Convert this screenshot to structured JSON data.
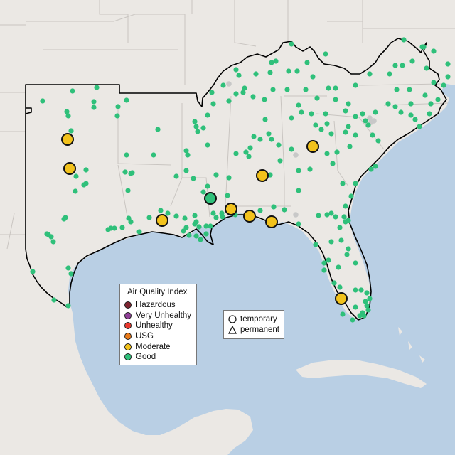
{
  "map": {
    "colors": {
      "land": "#ebe8e4",
      "water": "#b9cfe4",
      "state_border": "#c9c5c1",
      "region_outline": "#000000",
      "site_good": "#2fc07a",
      "site_moderate": "#f2c21c",
      "site_inactive": "#c8c8c8"
    }
  },
  "legend": {
    "title": "Air Quality Index",
    "items": [
      {
        "label": "Hazardous",
        "color": "#7e2430"
      },
      {
        "label": "Very Unhealthy",
        "color": "#8f3f97"
      },
      {
        "label": "Unhealthy",
        "color": "#e8382d"
      },
      {
        "label": "USG",
        "color": "#e97a1a"
      },
      {
        "label": "Moderate",
        "color": "#f2c21c"
      },
      {
        "label": "Good",
        "color": "#2fc07a"
      }
    ]
  },
  "shape_legend": {
    "items": [
      {
        "label": "temporary",
        "icon": "circle-icon"
      },
      {
        "label": "permanent",
        "icon": "triangle-icon"
      }
    ]
  }
}
